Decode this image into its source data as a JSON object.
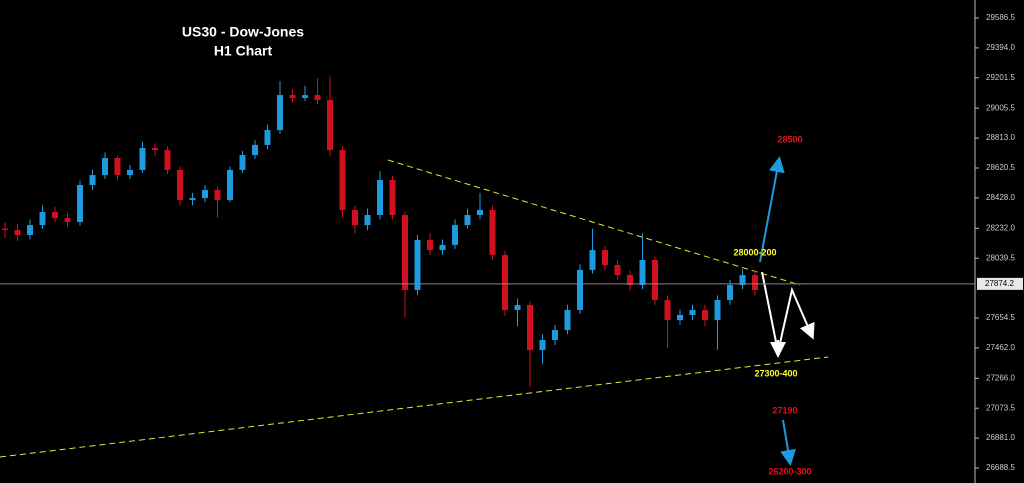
{
  "chart_data": {
    "type": "candlestick",
    "title": "US30 - Dow-Jones",
    "subtitle": "H1 Chart",
    "categories": [
      null,
      null,
      null,
      null,
      null,
      null,
      null,
      null,
      null,
      null,
      null,
      null,
      null,
      null,
      null,
      null,
      null,
      null,
      null,
      null,
      null,
      null,
      null,
      null,
      null,
      null,
      null,
      null,
      null,
      null,
      null,
      null,
      null,
      null,
      null,
      null,
      null,
      null,
      null,
      null,
      null,
      null,
      null,
      null,
      null,
      null,
      null,
      null,
      null,
      null,
      null,
      null,
      null,
      null,
      null,
      null,
      null,
      null,
      null,
      null,
      null
    ],
    "open": [
      28230,
      28221,
      28189,
      28253,
      28337,
      28298,
      28273,
      28511,
      28575,
      28685,
      28575,
      28608,
      28749,
      28736,
      28608,
      28414,
      28427,
      28479,
      28414,
      28608,
      28704,
      28769,
      28865,
      29090,
      29071,
      29090,
      29058,
      28736,
      28350,
      28253,
      28318,
      28543,
      28318,
      27835,
      28157,
      28092,
      28125,
      28253,
      28318,
      28350,
      28060,
      27706,
      27738,
      27448,
      27513,
      27577,
      27706,
      27964,
      28092,
      27996,
      27931,
      27867,
      28028,
      27770,
      27641,
      27674,
      27706,
      27641,
      27770,
      27867,
      27931
    ],
    "high": [
      28270,
      28260,
      28290,
      28380,
      28370,
      28330,
      28540,
      28610,
      28720,
      28700,
      28640,
      28790,
      28780,
      28760,
      28630,
      28460,
      28510,
      28500,
      28630,
      28730,
      28800,
      28900,
      29180,
      29130,
      29150,
      29200,
      29210,
      28760,
      28380,
      28360,
      28600,
      28570,
      28340,
      28190,
      28200,
      28160,
      28290,
      28360,
      28460,
      28380,
      28090,
      27780,
      27760,
      27550,
      27610,
      27740,
      28000,
      28230,
      28120,
      28030,
      27960,
      28200,
      28050,
      27800,
      27710,
      27740,
      27740,
      27800,
      27900,
      27970,
      27960
    ],
    "low": [
      28170,
      28150,
      28160,
      28230,
      28270,
      28240,
      28250,
      28480,
      28550,
      28540,
      28550,
      28590,
      28700,
      28580,
      28380,
      28380,
      28400,
      28300,
      28400,
      28590,
      28680,
      28740,
      28840,
      29040,
      29050,
      29030,
      28700,
      28300,
      28200,
      28220,
      28290,
      28290,
      27660,
      27800,
      28060,
      28060,
      28100,
      28230,
      28290,
      28030,
      27670,
      27600,
      27210,
      27360,
      27480,
      27550,
      27680,
      27940,
      27960,
      27900,
      27830,
      27840,
      27740,
      27460,
      27610,
      27640,
      27600,
      27450,
      27740,
      27840,
      27800
    ],
    "close": [
      28221,
      28189,
      28253,
      28337,
      28298,
      28273,
      28511,
      28575,
      28685,
      28575,
      28608,
      28749,
      28736,
      28608,
      28414,
      28427,
      28479,
      28414,
      28608,
      28704,
      28769,
      28865,
      29090,
      29071,
      29090,
      29058,
      28736,
      28350,
      28253,
      28318,
      28543,
      28318,
      27835,
      28157,
      28092,
      28125,
      28253,
      28318,
      28350,
      28060,
      27706,
      27738,
      27448,
      27513,
      27577,
      27706,
      27964,
      28092,
      27996,
      27931,
      27867,
      28028,
      27770,
      27641,
      27674,
      27706,
      27641,
      27770,
      27867,
      27931,
      27835
    ],
    "up_color": "#1e9be0",
    "down_color": "#d0101e",
    "last_price": 27874.2,
    "ylim": [
      26591.9,
      29702.4
    ],
    "yticks": [
      29586.5,
      {
        "value": 29394,
        "label": "29394.0"
      },
      29201.5,
      29005.5,
      {
        "value": 28813,
        "label": "28813.0"
      },
      28620.5,
      {
        "value": 28428,
        "label": "28428.0"
      },
      {
        "value": 28232,
        "label": "28232.0"
      },
      28039.5,
      27654.5,
      {
        "value": 27462,
        "label": "27462.0"
      },
      {
        "value": 27266,
        "label": "27266.0"
      },
      27073.5,
      {
        "value": 26881,
        "label": "26881.0"
      },
      26688.5
    ],
    "annotations": [
      {
        "text": "28500",
        "color": "#e8101e"
      },
      {
        "text": "28000-200",
        "color": "#ffff33"
      },
      {
        "text": "27300-400",
        "color": "#ffff33"
      },
      {
        "text": "27190",
        "color": "#e8101e"
      },
      {
        "text": "26200-300",
        "color": "#e8101e"
      }
    ]
  }
}
